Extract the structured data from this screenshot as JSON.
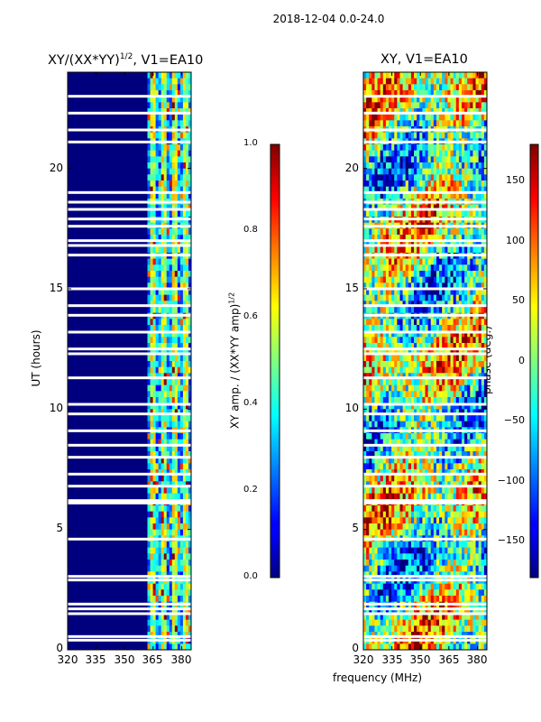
{
  "figure": {
    "suptitle": "2018-12-04 0.0-24.0",
    "xlabel": "frequency (MHz)",
    "colors": {
      "background": "#00007f",
      "gap": "#ffffff",
      "tick": "#000000"
    }
  },
  "chart_data": [
    {
      "type": "heatmap",
      "title_main": "XY/(XX*YY)",
      "title_sup": "1/2",
      "title_rest": ", V1=EA10",
      "ylabel": "UT (hours)",
      "x_ticks": [
        "320",
        "335",
        "350",
        "365",
        "380"
      ],
      "y_ticks": [
        "0",
        "5",
        "10",
        "15",
        "20"
      ],
      "xlim": [
        320,
        385
      ],
      "ylim": [
        0,
        24
      ],
      "colorbar": {
        "label_main": "XY amp. / (XX*YY amp)",
        "label_sup": "1/2",
        "range": [
          0.0,
          1.0
        ],
        "ticks": [
          "0.0",
          "0.2",
          "0.4",
          "0.6",
          "0.8",
          "1.0"
        ],
        "colormap": "jet"
      },
      "active_band_mhz": [
        362,
        385
      ],
      "flagged_hours": [
        0.4,
        0.55,
        1.5,
        1.7,
        1.9,
        2.9,
        3.05,
        4.6,
        6.1,
        6.2,
        6.8,
        7.3,
        8.0,
        8.5,
        9.1,
        9.8,
        10.2,
        11.3,
        12.3,
        12.5,
        13.2,
        13.9,
        14.3,
        15.0,
        16.4,
        16.8,
        17.0,
        17.6,
        17.9,
        18.3,
        18.6,
        19.0,
        21.1,
        21.6,
        22.3,
        23.0
      ]
    },
    {
      "type": "heatmap",
      "title_main": "XY, V1=EA10",
      "x_ticks": [
        "320",
        "335",
        "350",
        "365",
        "380"
      ],
      "y_ticks": [
        "0",
        "5",
        "10",
        "15",
        "20"
      ],
      "xlim": [
        320,
        385
      ],
      "ylim": [
        0,
        24
      ],
      "colorbar": {
        "label_main": "phase (deg.)",
        "range": [
          -180,
          180
        ],
        "ticks": [
          "−150",
          "−100",
          "−50",
          "0",
          "50",
          "100",
          "150"
        ],
        "colormap": "jet"
      },
      "flagged_hours": [
        0.4,
        0.55,
        1.5,
        1.7,
        1.9,
        2.9,
        3.05,
        4.6,
        6.1,
        6.2,
        6.8,
        7.3,
        8.0,
        8.5,
        9.1,
        9.8,
        10.2,
        11.3,
        12.3,
        12.5,
        13.2,
        13.9,
        14.3,
        15.0,
        16.4,
        16.8,
        17.0,
        17.6,
        17.9,
        18.3,
        18.6,
        19.0,
        21.1,
        21.6,
        22.3,
        23.0
      ]
    }
  ]
}
